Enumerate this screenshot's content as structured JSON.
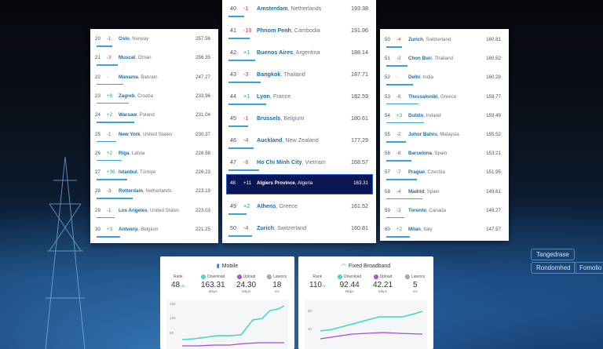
{
  "left_panel": [
    {
      "rank": "20",
      "change": "-1",
      "dir": "down",
      "city": "Oslo",
      "country": "Norway",
      "speed": "257.56"
    },
    {
      "rank": "21",
      "change": "-3",
      "dir": "down",
      "city": "Muscat",
      "country": "Oman",
      "speed": "256.35"
    },
    {
      "rank": "22",
      "change": "-",
      "dir": "same",
      "city": "Manama",
      "country": "Bahrain",
      "speed": "247.27"
    },
    {
      "rank": "23",
      "change": "+8",
      "dir": "up",
      "city": "Zagreb",
      "country": "Croatia",
      "speed": "233.96"
    },
    {
      "rank": "24",
      "change": "+2",
      "dir": "up",
      "city": "Warsaw",
      "country": "Poland",
      "speed": "231.04"
    },
    {
      "rank": "25",
      "change": "-1",
      "dir": "down",
      "city": "New York",
      "country": "United States",
      "speed": "230.37"
    },
    {
      "rank": "26",
      "change": "+2",
      "dir": "up",
      "city": "Riga",
      "country": "Latvia",
      "speed": "226.58"
    },
    {
      "rank": "27",
      "change": "+36",
      "dir": "up",
      "city": "Istanbul",
      "country": "Türkiye",
      "speed": "226.23"
    },
    {
      "rank": "28",
      "change": "-3",
      "dir": "down",
      "city": "Rotterdam",
      "country": "Netherlands",
      "speed": "223.19"
    },
    {
      "rank": "29",
      "change": "-1",
      "dir": "down",
      "city": "Los Angeles",
      "country": "United States",
      "speed": "223.03"
    },
    {
      "rank": "30",
      "change": "+3",
      "dir": "up",
      "city": "Antwerp",
      "country": "Belgium",
      "speed": "221.25"
    }
  ],
  "middle_panel": [
    {
      "rank": "40",
      "change": "-1",
      "dir": "down",
      "city": "Amsterdam",
      "country": "Netherlands",
      "speed": "193.38"
    },
    {
      "rank": "41",
      "change": "-18",
      "dir": "down",
      "city": "Phnom Penh",
      "country": "Cambodia",
      "speed": "191.96"
    },
    {
      "rank": "42",
      "change": "+1",
      "dir": "up",
      "city": "Buenos Aires",
      "country": "Argentina",
      "speed": "188.14"
    },
    {
      "rank": "43",
      "change": "-3",
      "dir": "down",
      "city": "Bangkok",
      "country": "Thailand",
      "speed": "187.71"
    },
    {
      "rank": "44",
      "change": "+1",
      "dir": "up",
      "city": "Lyon",
      "country": "France",
      "speed": "182.59"
    },
    {
      "rank": "45",
      "change": "-1",
      "dir": "down",
      "city": "Brussels",
      "country": "Belgium",
      "speed": "180.61"
    },
    {
      "rank": "46",
      "change": "-4",
      "dir": "down",
      "city": "Auckland",
      "country": "New Zealand",
      "speed": "177.29"
    },
    {
      "rank": "47",
      "change": "-6",
      "dir": "down",
      "city": "Ho Chi Minh City",
      "country": "Vietnam",
      "speed": "168.57"
    },
    {
      "rank": "48",
      "change": "+11",
      "dir": "up",
      "city": "Algiers Province",
      "country": "Algeria",
      "speed": "163.31",
      "highlight": true
    },
    {
      "rank": "49",
      "change": "+2",
      "dir": "up",
      "city": "Athens",
      "country": "Greece",
      "speed": "161.52"
    },
    {
      "rank": "50",
      "change": "-4",
      "dir": "down",
      "city": "Zurich",
      "country": "Switzerland",
      "speed": "160.81"
    }
  ],
  "right_panel": [
    {
      "rank": "50",
      "change": "-4",
      "dir": "down",
      "city": "Zurich",
      "country": "Switzerland",
      "speed": "160.81"
    },
    {
      "rank": "51",
      "change": "-2",
      "dir": "down",
      "city": "Chon Buri",
      "country": "Thailand",
      "speed": "160.52"
    },
    {
      "rank": "52",
      "change": "-",
      "dir": "same",
      "city": "Delhi",
      "country": "India",
      "speed": "160.28"
    },
    {
      "rank": "53",
      "change": "-6",
      "dir": "down",
      "city": "Thessaloniki",
      "country": "Greece",
      "speed": "159.77"
    },
    {
      "rank": "54",
      "change": "+3",
      "dir": "up",
      "city": "Dublin",
      "country": "Ireland",
      "speed": "159.49"
    },
    {
      "rank": "55",
      "change": "-2",
      "dir": "down",
      "city": "Johor Bahru",
      "country": "Malaysia",
      "speed": "155.52"
    },
    {
      "rank": "56",
      "change": "-8",
      "dir": "down",
      "city": "Barcelona",
      "country": "Spain",
      "speed": "153.21"
    },
    {
      "rank": "57",
      "change": "-7",
      "dir": "down",
      "city": "Prague",
      "country": "Czechia",
      "speed": "151.95"
    },
    {
      "rank": "58",
      "change": "-4",
      "dir": "down",
      "city": "Madrid",
      "country": "Spain",
      "speed": "149.61"
    },
    {
      "rank": "59",
      "change": "-3",
      "dir": "down",
      "city": "Toronto",
      "country": "Canada",
      "speed": "149.27"
    },
    {
      "rank": "60",
      "change": "+2",
      "dir": "up",
      "city": "Milan",
      "country": "Italy",
      "speed": "147.57"
    }
  ],
  "mobile_card": {
    "title": "Mobile",
    "rank_label": "Rank",
    "rank": "48",
    "rank_change": "+11",
    "download_label": "Download",
    "download": "163.31",
    "download_unit": "Mbps",
    "upload_label": "Upload",
    "upload": "24.30",
    "upload_unit": "Mbps",
    "latency_label": "Latency",
    "latency": "18",
    "latency_unit": "ms",
    "y_ticks": [
      "180",
      "120",
      "60"
    ]
  },
  "broadband_card": {
    "title": "Fixed Broadband",
    "rank_label": "Rank",
    "rank": "110",
    "rank_change": "+5",
    "download_label": "Download",
    "download": "92.44",
    "download_unit": "Mbps",
    "upload_label": "Upload",
    "upload": "42.21",
    "upload_unit": "Mbps",
    "latency_label": "Latency",
    "latency": "5",
    "latency_unit": "ms",
    "y_ticks": [
      "80",
      "40"
    ]
  },
  "bg_tags": [
    "Tangedrase",
    "Rondomhed",
    "Fomolio"
  ],
  "colors": {
    "download": "#3fd6c4",
    "upload": "#a64bd6",
    "up": "#1ea07a",
    "down": "#d0335a",
    "highlight": "#0b1654"
  }
}
